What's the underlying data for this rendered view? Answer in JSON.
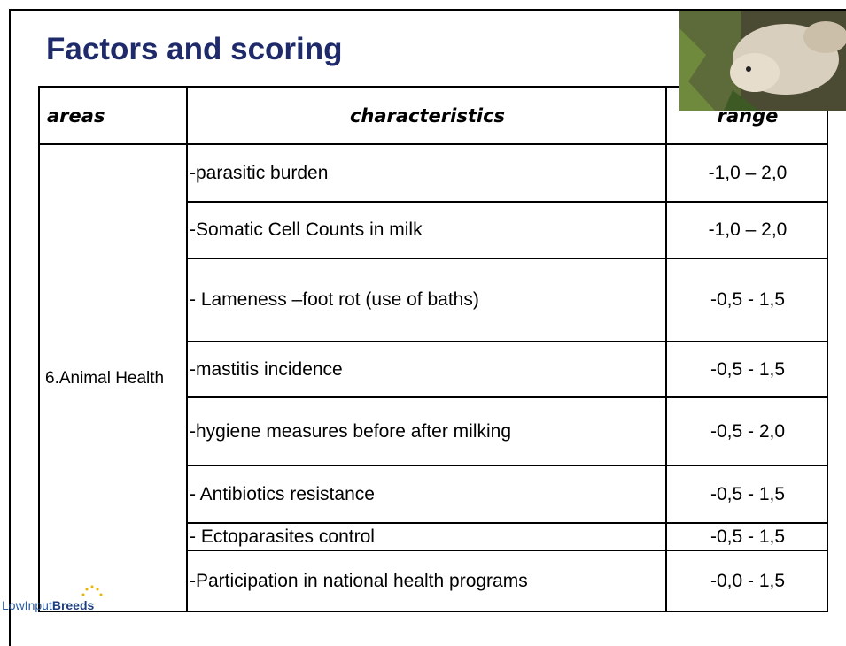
{
  "header": {
    "title": "Factors and scoring"
  },
  "table": {
    "headers": [
      "areas",
      "characteristics",
      "range"
    ],
    "area": "6.Animal Health",
    "rows": [
      [
        "-parasitic burden",
        "-1,0 – 2,0"
      ],
      [
        "-Somatic Cell Counts in milk",
        "-1,0 – 2,0"
      ],
      [
        "- Lameness –foot rot  (use of baths)",
        "-0,5 - 1,5"
      ],
      [
        "-mastitis incidence",
        "-0,5 - 1,5"
      ],
      [
        "-hygiene measures before after milking",
        "-0,5 - 2,0"
      ],
      [
        "- Antibiotics resistance",
        "-0,5 - 1,5"
      ],
      [
        "- Ectoparasites control",
        "-0,5 - 1,5"
      ],
      [
        "-Participation in national health programs",
        "-0,0 - 1,5"
      ]
    ]
  },
  "logo": {
    "prefix": "LowInput",
    "suffix": "Breeds"
  }
}
